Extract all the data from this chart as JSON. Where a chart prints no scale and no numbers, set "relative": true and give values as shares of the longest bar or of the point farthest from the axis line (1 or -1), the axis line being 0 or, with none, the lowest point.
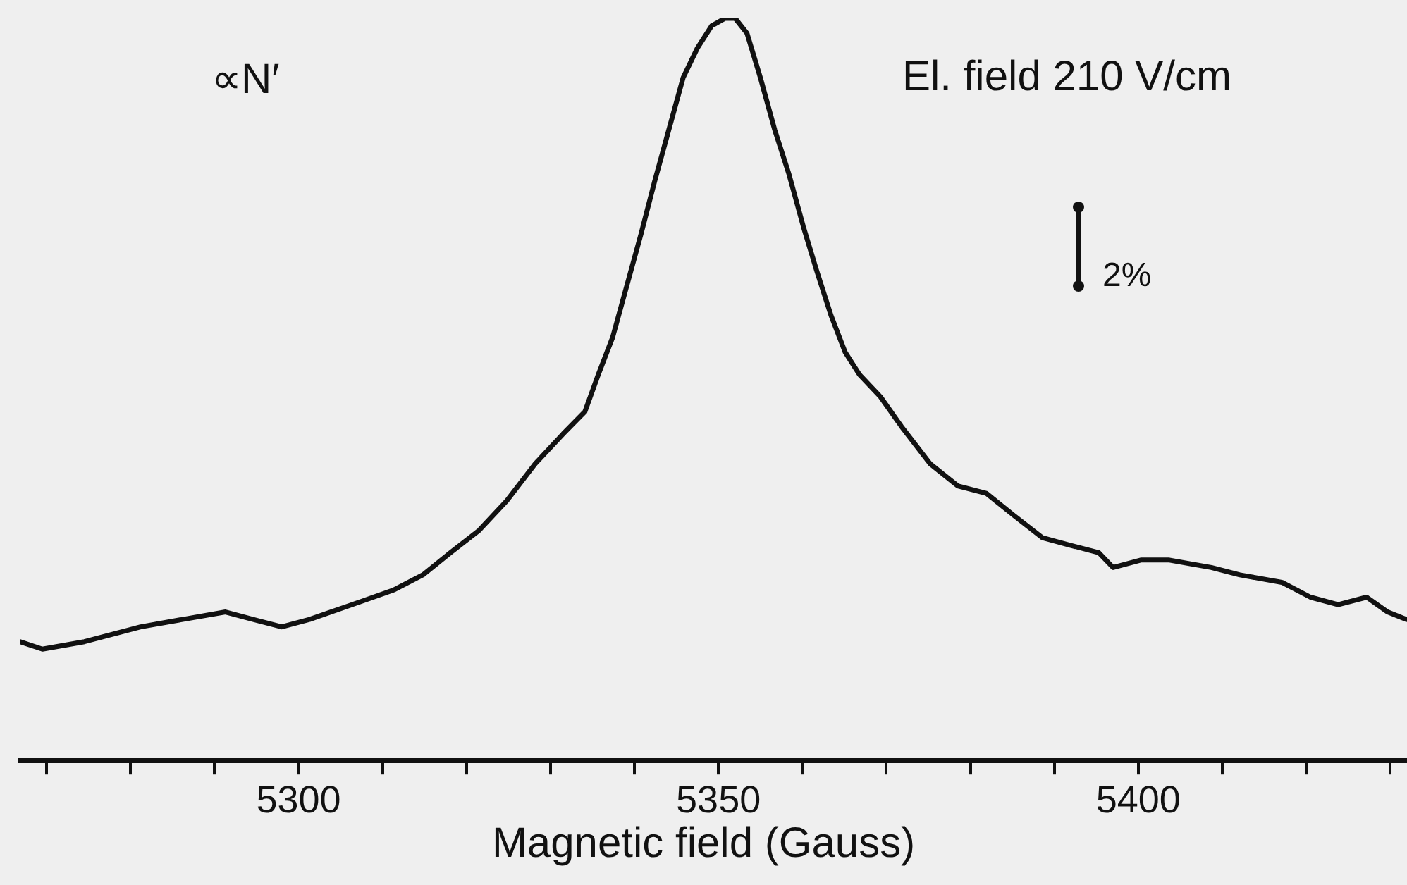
{
  "chart_data": {
    "type": "line",
    "relative": true,
    "xlabel": "Magnetic field (Gauss)",
    "annotations": [
      "∝N′",
      "El. field 210 V/cm",
      "2%"
    ],
    "xlim": [
      5266.8,
      5432
    ],
    "xticks": [
      {
        "value": 5270,
        "label": null
      },
      {
        "value": 5280,
        "label": null
      },
      {
        "value": 5290,
        "label": null
      },
      5300,
      {
        "value": 5310,
        "label": null
      },
      {
        "value": 5320,
        "label": null
      },
      {
        "value": 5330,
        "label": null
      },
      {
        "value": 5340,
        "label": null
      },
      5350,
      {
        "value": 5360,
        "label": null
      },
      {
        "value": 5370,
        "label": null
      },
      {
        "value": 5380,
        "label": null
      },
      {
        "value": 5390,
        "label": null
      },
      5400,
      {
        "value": 5410,
        "label": null
      },
      {
        "value": 5420,
        "label": null
      },
      {
        "value": 5430,
        "label": null
      }
    ],
    "tick_labels": "x",
    "grid": false,
    "legend": false,
    "marker": "none",
    "line_style": "solid",
    "x": [
      5266.8,
      5269.5,
      5274.5,
      5281.2,
      5286.2,
      5291.3,
      5294.6,
      5298.0,
      5301.3,
      5306.4,
      5311.4,
      5314.8,
      5318.1,
      5321.5,
      5324.8,
      5328.2,
      5331.5,
      5334.1,
      5335.7,
      5337.4,
      5339.1,
      5340.8,
      5342.4,
      5344.1,
      5345.8,
      5347.5,
      5349.2,
      5350.8,
      5352.0,
      5353.4,
      5355.0,
      5356.7,
      5358.4,
      5360.1,
      5361.7,
      5363.4,
      5365.1,
      5366.8,
      5369.3,
      5371.8,
      5375.2,
      5378.5,
      5381.9,
      5385.2,
      5388.6,
      5391.9,
      5395.3,
      5397.0,
      5400.3,
      5403.7,
      5408.7,
      5412.1,
      5417.1,
      5420.5,
      5423.8,
      5427.2,
      5429.7,
      5431.9
    ],
    "series": [
      {
        "color": "#111111",
        "values": [
          0.16,
          0.15,
          0.16,
          0.18,
          0.19,
          0.2,
          0.19,
          0.18,
          0.19,
          0.21,
          0.23,
          0.25,
          0.28,
          0.31,
          0.35,
          0.4,
          0.44,
          0.47,
          0.52,
          0.57,
          0.64,
          0.71,
          0.78,
          0.85,
          0.92,
          0.96,
          0.99,
          1.0,
          1.0,
          0.98,
          0.92,
          0.85,
          0.79,
          0.72,
          0.66,
          0.6,
          0.55,
          0.52,
          0.49,
          0.45,
          0.4,
          0.37,
          0.36,
          0.33,
          0.3,
          0.29,
          0.28,
          0.26,
          0.27,
          0.27,
          0.26,
          0.25,
          0.24,
          0.22,
          0.21,
          0.22,
          0.2,
          0.19
        ]
      }
    ]
  }
}
